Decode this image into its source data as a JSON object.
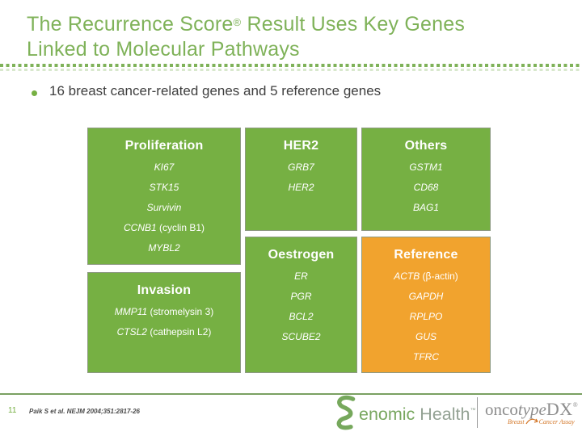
{
  "title": {
    "line1_pre": "The Recurrence Score",
    "reg": "®",
    "line1_post": " Result Uses Key Genes",
    "line2": "Linked to Molecular Pathways"
  },
  "bullet": {
    "text": "16 breast cancer-related genes and 5 reference genes"
  },
  "pathways": [
    {
      "title": "Proliferation",
      "color": "green",
      "genes": [
        "KI67",
        "STK15",
        "Survivin",
        "CCNB1 (cyclin B1)",
        "MYBL2"
      ]
    },
    {
      "title": "Invasion",
      "color": "green",
      "genes": [
        "MMP11 (stromelysin 3)",
        "CTSL2 (cathepsin L2)"
      ]
    },
    {
      "title": "HER2",
      "color": "green",
      "genes": [
        "GRB7",
        "HER2"
      ]
    },
    {
      "title": "Oestrogen",
      "color": "green",
      "genes": [
        "ER",
        "PGR",
        "BCL2",
        "SCUBE2"
      ]
    },
    {
      "title": "Others",
      "color": "green",
      "genes": [
        "GSTM1",
        "CD68",
        "BAG1"
      ]
    },
    {
      "title": "Reference",
      "color": "orange",
      "genes": [
        "ACTB (β-actin)",
        "GAPDH",
        "RPLPO",
        "GUS",
        "TFRC"
      ]
    }
  ],
  "footer": {
    "page_number": "11",
    "citation": "Paik S et al. NEJM 2004;351:2817-26",
    "genomic_health": {
      "name_rest_1": "enomic",
      "name_rest_2": " Health",
      "tm": "™"
    },
    "oncotype": {
      "part1": "onco",
      "part2": "type",
      "part3": "DX",
      "reg": "®",
      "tagline_left": "Breast",
      "tagline_right": "Cancer Assay"
    }
  },
  "colors": {
    "green": "#76b043",
    "orange": "#f1a32e",
    "title_green": "#7fb259",
    "footer_line": "#7aa061"
  }
}
